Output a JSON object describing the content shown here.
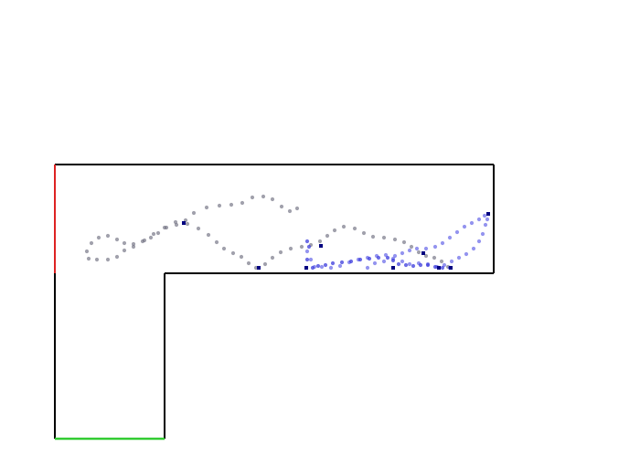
{
  "scene": {
    "background_color": "#ffffff",
    "wall_color": "#000000",
    "entry_edge_color": "#dd2222",
    "goal_edge_color": "#33cc33",
    "marker_color": "#000080"
  },
  "trajectories": [
    {
      "color": "#6e6e80",
      "opacity": 0.65
    },
    {
      "color": "#5a5ae6",
      "opacity": 0.65
    },
    {
      "color": "#3c3cdc",
      "opacity": 0.75
    }
  ]
}
